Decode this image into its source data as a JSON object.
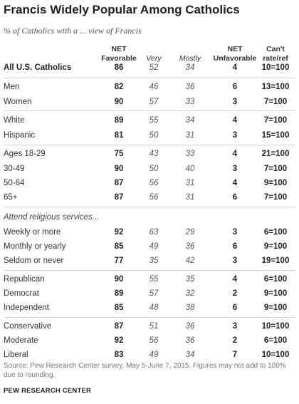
{
  "title": "Francis Widely Popular Among Catholics",
  "subtitle": "% of Catholics with a ... view of Francis",
  "headers": {
    "net_fav_1": "NET",
    "net_fav_2": "Favorable",
    "very": "Very",
    "mostly": "Mostly",
    "net_unfav_1": "NET",
    "net_unfav_2": "Unfavorable",
    "cant_1": "Can't",
    "cant_2": "rate/ref"
  },
  "section_label": "Attend religious services...",
  "footer": {
    "source": "Source: Pew Research Center survey, May 5-June 7, 2015. Figures may not add to 100% due to rounding.",
    "org": "PEW RESEARCH CENTER"
  },
  "chart_data": {
    "type": "table",
    "title": "Francis Widely Popular Among Catholics",
    "subtitle": "% of Catholics with a ... view of Francis",
    "columns": [
      "NET Favorable",
      "Very",
      "Mostly",
      "NET Unfavorable",
      "Can't rate/ref"
    ],
    "rows": [
      {
        "label": "All U.S. Catholics",
        "values": [
          "86",
          "52",
          "34",
          "4",
          "10=100"
        ]
      },
      {
        "label": "Men",
        "values": [
          "82",
          "46",
          "36",
          "6",
          "13=100"
        ]
      },
      {
        "label": "Women",
        "values": [
          "90",
          "57",
          "33",
          "3",
          "7=100"
        ]
      },
      {
        "label": "White",
        "values": [
          "89",
          "55",
          "34",
          "4",
          "7=100"
        ]
      },
      {
        "label": "Hispanic",
        "values": [
          "81",
          "50",
          "31",
          "3",
          "15=100"
        ]
      },
      {
        "label": "Ages 18-29",
        "values": [
          "75",
          "43",
          "33",
          "4",
          "21=100"
        ]
      },
      {
        "label": "30-49",
        "values": [
          "90",
          "50",
          "40",
          "3",
          "7=100"
        ]
      },
      {
        "label": "50-64",
        "values": [
          "87",
          "56",
          "31",
          "4",
          "9=100"
        ]
      },
      {
        "label": "65+",
        "values": [
          "87",
          "56",
          "31",
          "6",
          "7=100"
        ]
      },
      {
        "label": "Weekly or more",
        "values": [
          "92",
          "63",
          "29",
          "3",
          "6=100"
        ]
      },
      {
        "label": "Monthly or yearly",
        "values": [
          "85",
          "49",
          "36",
          "6",
          "9=100"
        ]
      },
      {
        "label": "Seldom or never",
        "values": [
          "77",
          "35",
          "42",
          "3",
          "19=100"
        ]
      },
      {
        "label": "Republican",
        "values": [
          "90",
          "55",
          "35",
          "4",
          "6=100"
        ]
      },
      {
        "label": "Democrat",
        "values": [
          "89",
          "57",
          "32",
          "2",
          "9=100"
        ]
      },
      {
        "label": "Independent",
        "values": [
          "85",
          "48",
          "38",
          "6",
          "9=100"
        ]
      },
      {
        "label": "Conservative",
        "values": [
          "87",
          "51",
          "36",
          "3",
          "10=100"
        ]
      },
      {
        "label": "Moderate",
        "values": [
          "92",
          "56",
          "36",
          "2",
          "6=100"
        ]
      },
      {
        "label": "Liberal",
        "values": [
          "83",
          "49",
          "34",
          "7",
          "10=100"
        ]
      }
    ]
  }
}
